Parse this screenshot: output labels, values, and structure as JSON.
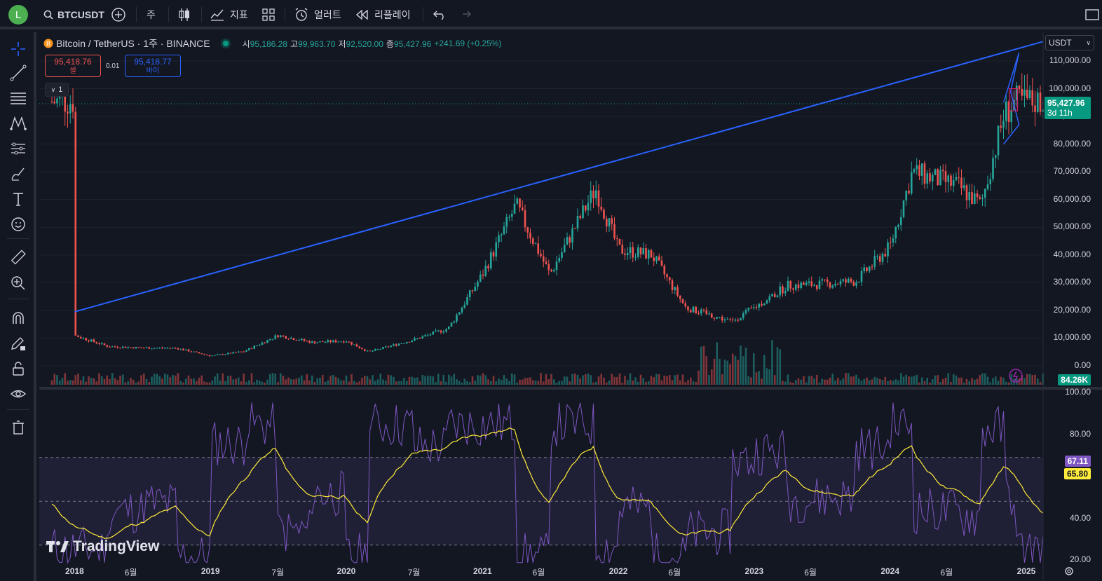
{
  "header": {
    "avatar_letter": "L",
    "symbol": "BTCUSDT",
    "interval": "주",
    "indicators_label": "지표",
    "alert_label": "얼러트",
    "replay_label": "리플레이"
  },
  "legend": {
    "title": "Bitcoin / TetherUS · 1주 · BINANCE",
    "open_label": "시",
    "open": "95,186.28",
    "high_label": "고",
    "high": "99,963.70",
    "low_label": "저",
    "low": "92,520.00",
    "close_label": "종",
    "close": "95,427.96",
    "change": "+241.69 (+0.25%)",
    "sell_price": "95,418.76",
    "sell_label": "셀",
    "spread": "0.01",
    "buy_price": "95,418.77",
    "buy_label": "바이",
    "collapse_count": "1"
  },
  "currency_select": "USDT",
  "price_axis": [
    "110,000.00",
    "100,000.00",
    "90,000.00",
    "80,000.00",
    "70,000.00",
    "60,000.00",
    "50,000.00",
    "40,000.00",
    "30,000.00",
    "20,000.00",
    "10,000.00",
    "0.00"
  ],
  "current_price_badge": {
    "price": "95,427.96",
    "countdown": "3d 11h",
    "color": "#089981"
  },
  "volume_badge": "84.26K",
  "rsi_axis": [
    "100.00",
    "80.00",
    "40.00",
    "20.00"
  ],
  "rsi_values": {
    "rsi": "67.11",
    "rsi_color": "#7e57c2",
    "ma": "65.80",
    "ma_color": "#ffeb3b"
  },
  "time_axis": [
    "2018",
    "6월",
    "2019",
    "7월",
    "2020",
    "7월",
    "2021",
    "6월",
    "2022",
    "6월",
    "2023",
    "6월",
    "2024",
    "6월",
    "2025"
  ],
  "watermark": "TradingView",
  "colors": {
    "up": "#26a69a",
    "down": "#ef5350",
    "trendline": "#2962ff",
    "bg": "#131722"
  },
  "chart_data": {
    "type": "candlestick",
    "title": "Bitcoin / TetherUS · 1주 · BINANCE",
    "ylim": [
      0,
      115000
    ],
    "x": [
      "2018-01",
      "2018-04",
      "2018-07",
      "2018-10",
      "2019-01",
      "2019-04",
      "2019-07",
      "2019-10",
      "2020-01",
      "2020-03",
      "2020-07",
      "2020-10",
      "2021-01",
      "2021-04",
      "2021-07",
      "2021-11",
      "2022-01",
      "2022-04",
      "2022-07",
      "2022-11",
      "2023-01",
      "2023-04",
      "2023-07",
      "2023-10",
      "2024-01",
      "2024-03",
      "2024-07",
      "2024-09",
      "2024-11",
      "2024-12"
    ],
    "close": [
      11000,
      7000,
      6500,
      6400,
      3600,
      5200,
      11000,
      8500,
      9000,
      5000,
      9500,
      13500,
      33000,
      58000,
      33000,
      64000,
      42000,
      40000,
      21000,
      16000,
      21000,
      29000,
      29500,
      30500,
      43000,
      70000,
      65000,
      58000,
      90000,
      95428
    ],
    "trendline": {
      "from": [
        "2018-01",
        19500
      ],
      "to": [
        "2025-01",
        117000
      ]
    },
    "rsi_indicator": {
      "rsi_last": 67.11,
      "ma_last": 65.8,
      "ylim": [
        20,
        100
      ],
      "bands": [
        30,
        50,
        70
      ]
    }
  }
}
